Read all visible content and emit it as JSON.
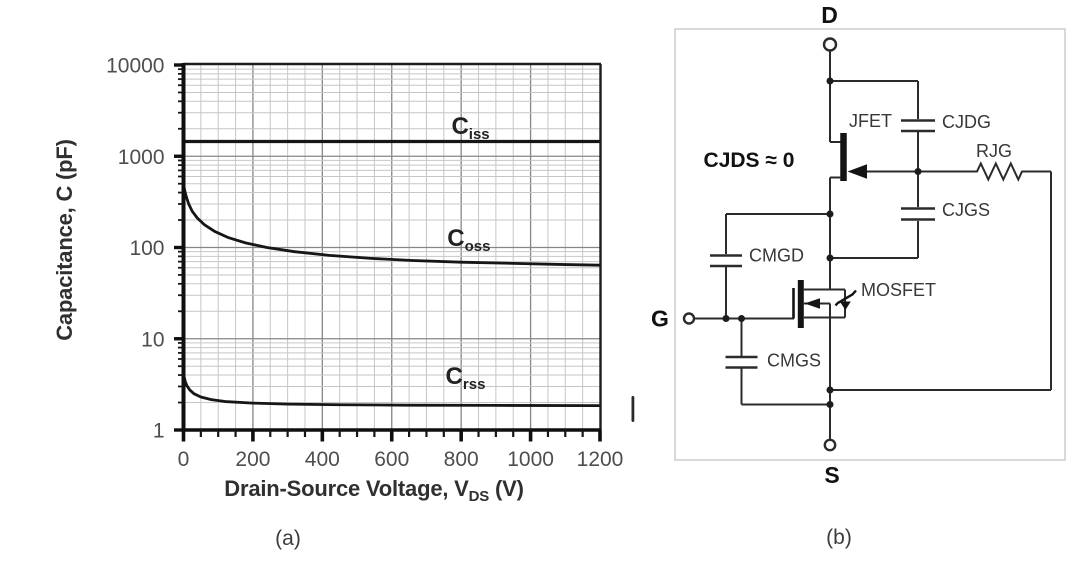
{
  "figure": {
    "panel_a_caption": "(a)",
    "panel_b_caption": "(b)"
  },
  "chart_data": {
    "type": "line",
    "xlabel_main": "Drain-Source Voltage, V",
    "xlabel_sub": "DS",
    "xlabel_unit": " (V)",
    "ylabel": "Capacitance, C (pF)",
    "x_axis": {
      "min": 0,
      "max": 1200,
      "scale": "linear",
      "major_ticks": [
        0,
        200,
        400,
        600,
        800,
        1000,
        1200
      ],
      "minor_step": 50
    },
    "y_axis": {
      "min": 1,
      "max": 10000,
      "scale": "log",
      "decade_ticks": [
        1,
        10,
        100,
        1000,
        10000
      ]
    },
    "grid": {
      "x_minor_step": 50,
      "x_major_step": 200,
      "y_log_minors": true
    },
    "series": [
      {
        "name": "Ciss",
        "label_main": "C",
        "label_sub": "iss",
        "label_at": {
          "x": 772,
          "y": 1750
        },
        "x": [
          0,
          1200
        ],
        "y": [
          1450,
          1450
        ]
      },
      {
        "name": "Coss",
        "label_main": "C",
        "label_sub": "oss",
        "label_at": {
          "x": 760,
          "y": 104
        },
        "x": [
          0,
          3,
          8,
          15,
          25,
          40,
          60,
          90,
          130,
          180,
          240,
          320,
          420,
          540,
          660,
          800,
          950,
          1100,
          1200
        ],
        "y": [
          500,
          430,
          360,
          300,
          250,
          210,
          178,
          150,
          128,
          112,
          100,
          90,
          82,
          76,
          72,
          69,
          67,
          65,
          64
        ]
      },
      {
        "name": "Crss",
        "label_main": "C",
        "label_sub": "rss",
        "label_at": {
          "x": 755,
          "y": 3.2
        },
        "x": [
          0,
          2,
          5,
          10,
          18,
          30,
          50,
          80,
          120,
          200,
          300,
          450,
          650,
          900,
          1200
        ],
        "y": [
          4.2,
          3.8,
          3.4,
          3.05,
          2.75,
          2.5,
          2.3,
          2.15,
          2.05,
          1.97,
          1.92,
          1.89,
          1.87,
          1.86,
          1.85
        ]
      }
    ]
  },
  "circuit": {
    "terminal_d": "D",
    "terminal_g": "G",
    "terminal_s": "S",
    "note": "CJDS ≈ 0",
    "labels": {
      "jfet": "JFET",
      "cjdg": "CJDG",
      "rjg": "RJG",
      "cjgs": "CJGS",
      "cmgd": "CMGD",
      "mosfet": "MOSFET",
      "cmgs": "CMGS"
    }
  },
  "colors": {
    "curve": "#161616",
    "axis": "#0f0f0f",
    "grid_minor": "#c6c6c6",
    "grid_major": "#868686",
    "tick_text": "#4e4e4e",
    "wire": "#2b2b2b",
    "border": "#c9c9c9"
  }
}
